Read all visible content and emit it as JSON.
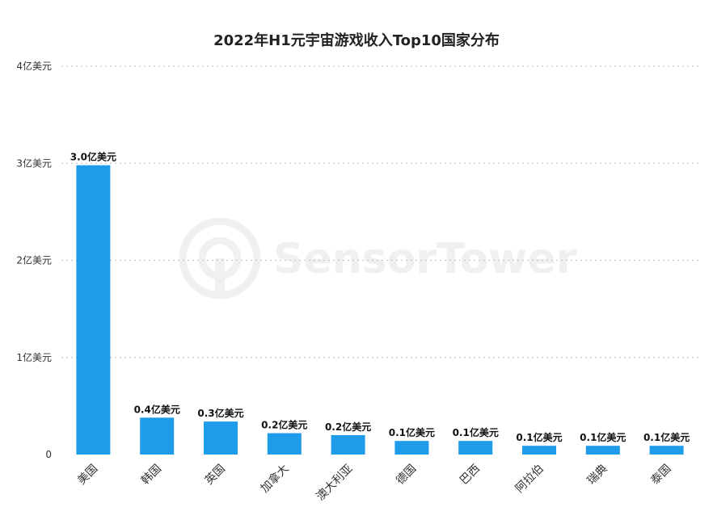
{
  "chart_data": {
    "type": "bar",
    "title": "2022年H1元宇宙游戏收入Top10国家分布",
    "categories": [
      "美国",
      "韩国",
      "英国",
      "加拿大",
      "澳大利亚",
      "德国",
      "巴西",
      "阿拉伯",
      "瑞典",
      "泰国"
    ],
    "values": [
      2.98,
      0.38,
      0.34,
      0.22,
      0.2,
      0.14,
      0.14,
      0.09,
      0.09,
      0.09
    ],
    "data_labels": [
      "3.0亿美元",
      "0.4亿美元",
      "0.3亿美元",
      "0.2亿美元",
      "0.2亿美元",
      "0.1亿美元",
      "0.1亿美元",
      "0.1亿美元",
      "0.1亿美元",
      "0.1亿美元"
    ],
    "y_ticks": [
      {
        "value": 0,
        "label": "0"
      },
      {
        "value": 1,
        "label": "1亿美元"
      },
      {
        "value": 2,
        "label": "2亿美元"
      },
      {
        "value": 3,
        "label": "3亿美元"
      },
      {
        "value": 4,
        "label": "4亿美元"
      }
    ],
    "ylim": [
      0,
      4
    ],
    "xlabel": "",
    "ylabel": "",
    "grid": true,
    "bar_color": "#1e9be9"
  },
  "watermark": {
    "text": "SensorTower"
  }
}
